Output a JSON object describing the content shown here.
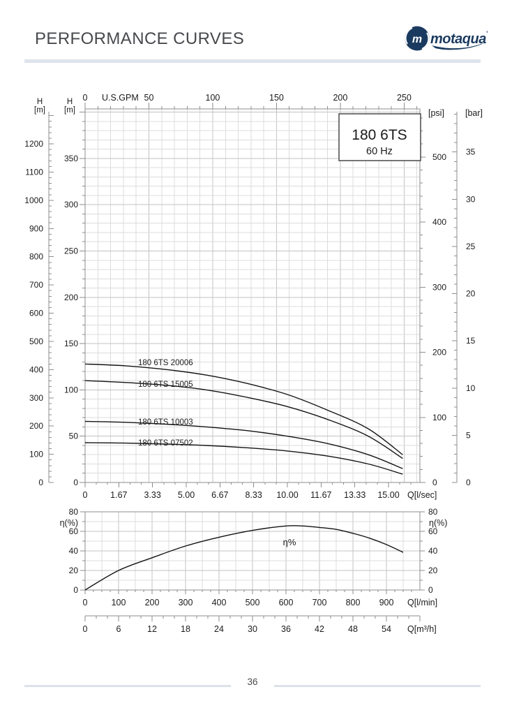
{
  "header": {
    "title": "PERFORMANCE CURVES",
    "logo": {
      "emblem_letter": "m",
      "wordmark": "motaqua",
      "mark": "’"
    }
  },
  "model_box": {
    "model": "180 6TS",
    "frequency": "60 Hz"
  },
  "footer": {
    "page_number": "36"
  },
  "colors": {
    "brand_navy": "#1b3a5f",
    "title_gray": "#47494d",
    "divider": "#dee4eb",
    "grid_minor": "#dcdcdc",
    "grid_major": "#c3c3c3",
    "axis": "#8d8d8d",
    "curve": "#141414",
    "text": "#1b1b1b"
  },
  "chart_data": [
    {
      "type": "line",
      "name": "head-capacity-curves",
      "title": "180 6TS 60 Hz",
      "x": [
        0,
        2,
        4,
        6,
        8,
        10,
        12,
        14,
        15.7
      ],
      "x_unit": "l/sec",
      "ylabel_unit": "m",
      "ylim": [
        0,
        400
      ],
      "grid": true,
      "x_axes": [
        {
          "id": "gpm",
          "label": "U.S.GPM",
          "position": "top",
          "tick_labels": [
            0,
            50,
            100,
            150,
            200,
            250
          ],
          "minor_step": 10,
          "range": [
            0,
            262
          ]
        },
        {
          "id": "lsec",
          "label": "Q[l/sec]",
          "position": "bottom",
          "tick_labels": [
            "0",
            "1.67",
            "3.33",
            "5.00",
            "6.67",
            "8.33",
            "10.00",
            "11.67",
            "13.33",
            "15.00"
          ],
          "minor_step": 0.5556,
          "range": [
            0,
            16.55
          ]
        }
      ],
      "y_axes": [
        {
          "id": "h_outer",
          "label": "H",
          "unit": "[m]",
          "position": "outer-left",
          "tick_labels": [
            0,
            100,
            200,
            300,
            400,
            500,
            600,
            700,
            800,
            900,
            1000,
            1100,
            1200
          ],
          "minor_step": 20,
          "range": [
            0,
            1313
          ],
          "to_m": 0.3048
        },
        {
          "id": "h_inner",
          "label": "H",
          "unit": "[m]",
          "position": "left",
          "tick_labels": [
            0,
            50,
            100,
            150,
            200,
            250,
            300,
            350
          ],
          "minor_step": 10,
          "range": [
            0,
            400
          ],
          "to_m": 1
        },
        {
          "id": "psi",
          "label": "[psi]",
          "position": "right",
          "tick_labels": [
            0,
            100,
            200,
            300,
            400,
            500
          ],
          "minor_step": 20,
          "range": [
            0,
            569
          ],
          "to_m": 0.7031
        },
        {
          "id": "bar",
          "label": "[bar]",
          "position": "far-right",
          "tick_labels": [
            0,
            5,
            10,
            15,
            20,
            25,
            30,
            35
          ],
          "minor_step": 1,
          "range": [
            0,
            39.2
          ],
          "to_m": 10.1972
        }
      ],
      "series": [
        {
          "name": "180 6TS 20006",
          "values": [
            128,
            126,
            122,
            116,
            107,
            95,
            78,
            58,
            30
          ]
        },
        {
          "name": "180 6TS 15005",
          "values": [
            110,
            108,
            105,
            100,
            92,
            82,
            68,
            50,
            26
          ]
        },
        {
          "name": "180 6TS 10003",
          "values": [
            66,
            65,
            63,
            60,
            56,
            50,
            42,
            30,
            15
          ]
        },
        {
          "name": "180 6TS 07502",
          "values": [
            43,
            42.5,
            41.5,
            40,
            37.5,
            34,
            28.5,
            20,
            9
          ]
        }
      ]
    },
    {
      "type": "line",
      "name": "efficiency-curve",
      "x": [
        0,
        100,
        200,
        300,
        400,
        500,
        600,
        650,
        700,
        750,
        800,
        850,
        900,
        950
      ],
      "x_unit": "l/min",
      "ylim": [
        0,
        80
      ],
      "grid": true,
      "x_axes": [
        {
          "id": "lmin",
          "label": "Q[l/min]",
          "position": "bottom",
          "tick_labels": [
            0,
            100,
            200,
            300,
            400,
            500,
            600,
            700,
            800,
            900
          ],
          "minor_step": 25,
          "range": [
            0,
            1000
          ]
        },
        {
          "id": "m3h",
          "label": "Q[m³/h]",
          "position": "scale-bar",
          "tick_labels": [
            0,
            6,
            12,
            18,
            24,
            30,
            36,
            42,
            48,
            54
          ],
          "minor_step": 2,
          "range": [
            0,
            60
          ]
        }
      ],
      "y_axes": [
        {
          "id": "eta_left",
          "label": "η(%)",
          "position": "left",
          "tick_labels": [
            0,
            20,
            40,
            60,
            80
          ],
          "minor_step": 10,
          "range": [
            0,
            80
          ]
        },
        {
          "id": "eta_right",
          "label": "η(%)",
          "position": "right",
          "tick_labels": [
            0,
            20,
            40,
            60,
            80
          ],
          "minor_step": 10,
          "range": [
            0,
            80
          ]
        }
      ],
      "series": [
        {
          "name": "η%",
          "values": [
            0,
            20,
            33,
            45,
            54,
            61,
            65.5,
            65.5,
            64,
            62,
            58,
            53,
            46.5,
            38.5
          ]
        }
      ],
      "annotation": {
        "text": "η%",
        "x_lmin": 610,
        "y_pct": 46
      }
    }
  ]
}
